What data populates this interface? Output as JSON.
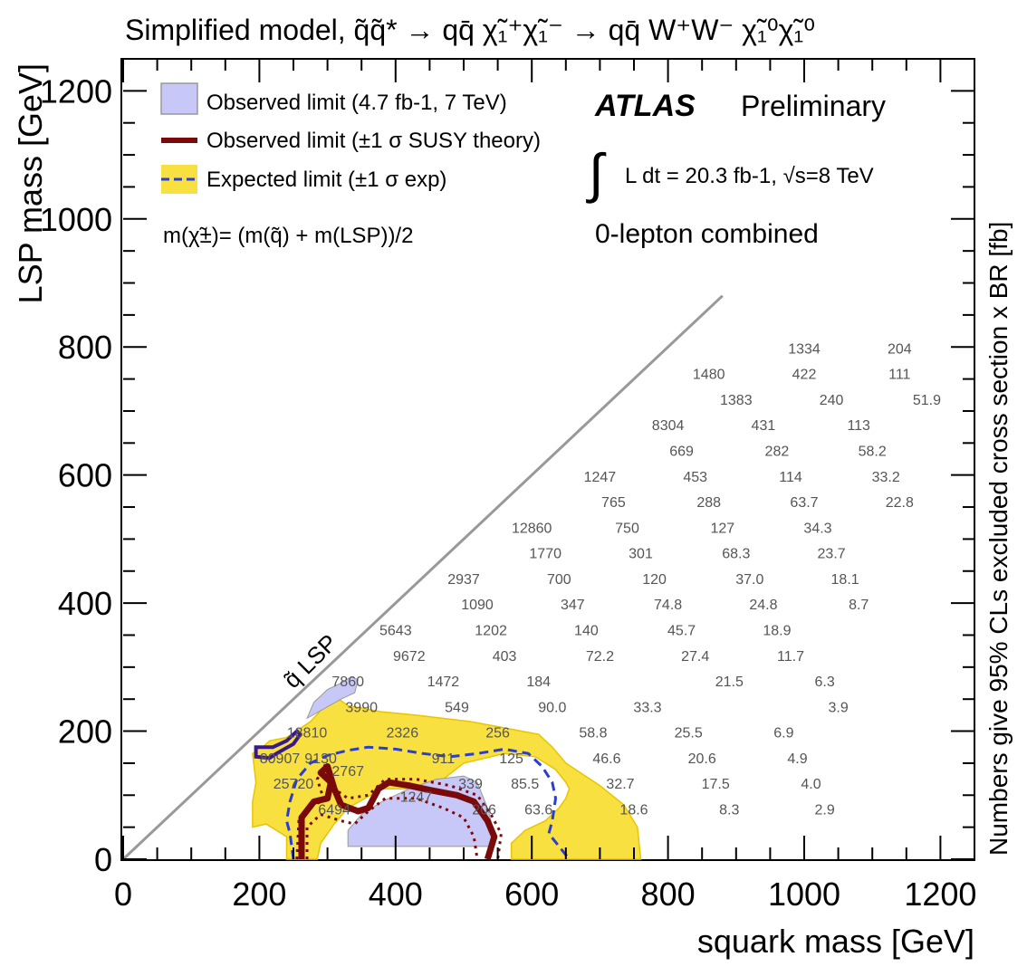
{
  "chart_data": {
    "type": "scatter",
    "title": "Simplified model, q̃q̃* → qq̄ χ̃₁⁺χ̃₁⁻ → qq̄ W⁺W⁻ χ̃₁⁰χ̃₁⁰",
    "xlabel": "squark mass [GeV]",
    "ylabel": "LSP mass [GeV]",
    "zlabel": "Numbers give 95% CLs excluded cross section x BR [fb]",
    "xlim": [
      0,
      1250
    ],
    "ylim": [
      0,
      1250
    ],
    "x_ticks": [
      "0",
      "200",
      "400",
      "600",
      "800",
      "1000",
      "1200"
    ],
    "y_ticks": [
      "0",
      "200",
      "400",
      "600",
      "800",
      "1000",
      "1200"
    ],
    "experiment": "ATLAS",
    "status": "Preliminary",
    "luminosity_text": "L dt = 20.3 fb-1,  √s=8 TeV",
    "analysis": "0-lepton combined",
    "mass_relation": "m(χ̃±)= (m(q̃) + m(LSP))/2",
    "diagonal_label": "q̃ LSP",
    "legend": [
      {
        "label": "Observed limit (4.7 fb-1, 7 TeV)",
        "style": "fill",
        "color": "#c8c8f8"
      },
      {
        "label": "Observed limit (±1 σ SUSY theory)",
        "style": "line",
        "color": "#7a0a0a"
      },
      {
        "label": "Expected limit (±1 σ exp)",
        "style": "band-dashed",
        "color": "#f5e23c"
      }
    ],
    "colors": {
      "observed_7tev": "#c8c8f8",
      "observed_line": "#7a0a0a",
      "expected_band": "#f8e040",
      "expected_line": "#2a3fd0",
      "diagonal": "#999999"
    },
    "cross_section_points": [
      {
        "x": 1000,
        "y": 790,
        "v": "1334"
      },
      {
        "x": 1140,
        "y": 790,
        "v": "204"
      },
      {
        "x": 860,
        "y": 750,
        "v": "1480"
      },
      {
        "x": 1000,
        "y": 750,
        "v": "422"
      },
      {
        "x": 1140,
        "y": 750,
        "v": "111"
      },
      {
        "x": 900,
        "y": 710,
        "v": "1383"
      },
      {
        "x": 1040,
        "y": 710,
        "v": "240"
      },
      {
        "x": 1180,
        "y": 710,
        "v": "51.9"
      },
      {
        "x": 800,
        "y": 670,
        "v": "8304"
      },
      {
        "x": 940,
        "y": 670,
        "v": "431"
      },
      {
        "x": 1080,
        "y": 670,
        "v": "113"
      },
      {
        "x": 820,
        "y": 630,
        "v": "669"
      },
      {
        "x": 960,
        "y": 630,
        "v": "282"
      },
      {
        "x": 1100,
        "y": 630,
        "v": "58.2"
      },
      {
        "x": 700,
        "y": 590,
        "v": "1247"
      },
      {
        "x": 840,
        "y": 590,
        "v": "453"
      },
      {
        "x": 980,
        "y": 590,
        "v": "114"
      },
      {
        "x": 1120,
        "y": 590,
        "v": "33.2"
      },
      {
        "x": 720,
        "y": 550,
        "v": "765"
      },
      {
        "x": 860,
        "y": 550,
        "v": "288"
      },
      {
        "x": 1000,
        "y": 550,
        "v": "63.7"
      },
      {
        "x": 1140,
        "y": 550,
        "v": "22.8"
      },
      {
        "x": 600,
        "y": 510,
        "v": "12860"
      },
      {
        "x": 740,
        "y": 510,
        "v": "750"
      },
      {
        "x": 880,
        "y": 510,
        "v": "127"
      },
      {
        "x": 1020,
        "y": 510,
        "v": "34.3"
      },
      {
        "x": 620,
        "y": 470,
        "v": "1770"
      },
      {
        "x": 760,
        "y": 470,
        "v": "301"
      },
      {
        "x": 900,
        "y": 470,
        "v": "68.3"
      },
      {
        "x": 1040,
        "y": 470,
        "v": "23.7"
      },
      {
        "x": 500,
        "y": 430,
        "v": "2937"
      },
      {
        "x": 640,
        "y": 430,
        "v": "700"
      },
      {
        "x": 780,
        "y": 430,
        "v": "120"
      },
      {
        "x": 920,
        "y": 430,
        "v": "37.0"
      },
      {
        "x": 1060,
        "y": 430,
        "v": "18.1"
      },
      {
        "x": 520,
        "y": 390,
        "v": "1090"
      },
      {
        "x": 660,
        "y": 390,
        "v": "347"
      },
      {
        "x": 800,
        "y": 390,
        "v": "74.8"
      },
      {
        "x": 940,
        "y": 390,
        "v": "24.8"
      },
      {
        "x": 1080,
        "y": 390,
        "v": "8.7"
      },
      {
        "x": 400,
        "y": 350,
        "v": "5643"
      },
      {
        "x": 540,
        "y": 350,
        "v": "1202"
      },
      {
        "x": 680,
        "y": 350,
        "v": "140"
      },
      {
        "x": 820,
        "y": 350,
        "v": "45.7"
      },
      {
        "x": 960,
        "y": 350,
        "v": "18.9"
      },
      {
        "x": 420,
        "y": 310,
        "v": "9672"
      },
      {
        "x": 560,
        "y": 310,
        "v": "403"
      },
      {
        "x": 700,
        "y": 310,
        "v": "72.2"
      },
      {
        "x": 840,
        "y": 310,
        "v": "27.4"
      },
      {
        "x": 980,
        "y": 310,
        "v": "11.7"
      },
      {
        "x": 330,
        "y": 270,
        "v": "7860"
      },
      {
        "x": 470,
        "y": 270,
        "v": "1472"
      },
      {
        "x": 610,
        "y": 270,
        "v": "184"
      },
      {
        "x": 890,
        "y": 270,
        "v": "21.5"
      },
      {
        "x": 1030,
        "y": 270,
        "v": "6.3"
      },
      {
        "x": 350,
        "y": 230,
        "v": "3990"
      },
      {
        "x": 490,
        "y": 230,
        "v": "549"
      },
      {
        "x": 630,
        "y": 230,
        "v": "90.0"
      },
      {
        "x": 770,
        "y": 230,
        "v": "33.3"
      },
      {
        "x": 1050,
        "y": 230,
        "v": "3.9"
      },
      {
        "x": 270,
        "y": 190,
        "v": "18810"
      },
      {
        "x": 410,
        "y": 190,
        "v": "2326"
      },
      {
        "x": 550,
        "y": 190,
        "v": "256"
      },
      {
        "x": 690,
        "y": 190,
        "v": "58.8"
      },
      {
        "x": 830,
        "y": 190,
        "v": "25.5"
      },
      {
        "x": 970,
        "y": 190,
        "v": "6.9"
      },
      {
        "x": 290,
        "y": 150,
        "v": "9130"
      },
      {
        "x": 470,
        "y": 150,
        "v": "911"
      },
      {
        "x": 570,
        "y": 150,
        "v": "125"
      },
      {
        "x": 710,
        "y": 150,
        "v": "46.6"
      },
      {
        "x": 850,
        "y": 150,
        "v": "20.6"
      },
      {
        "x": 990,
        "y": 150,
        "v": "4.9"
      },
      {
        "x": 230,
        "y": 150,
        "v": "80907"
      },
      {
        "x": 330,
        "y": 130,
        "v": "2767"
      },
      {
        "x": 250,
        "y": 110,
        "v": "25720"
      },
      {
        "x": 510,
        "y": 110,
        "v": "339"
      },
      {
        "x": 590,
        "y": 110,
        "v": "85.5"
      },
      {
        "x": 730,
        "y": 110,
        "v": "32.7"
      },
      {
        "x": 870,
        "y": 110,
        "v": "17.5"
      },
      {
        "x": 1010,
        "y": 110,
        "v": "4.0"
      },
      {
        "x": 430,
        "y": 90,
        "v": "1247"
      },
      {
        "x": 310,
        "y": 70,
        "v": "6494"
      },
      {
        "x": 530,
        "y": 70,
        "v": "206"
      },
      {
        "x": 610,
        "y": 70,
        "v": "63.6"
      },
      {
        "x": 750,
        "y": 70,
        "v": "18.6"
      },
      {
        "x": 890,
        "y": 70,
        "v": "8.3"
      },
      {
        "x": 1030,
        "y": 70,
        "v": "2.9"
      }
    ],
    "contours": {
      "expected_band_outer": [
        [
          190,
          165
        ],
        [
          205,
          175
        ],
        [
          215,
          185
        ],
        [
          240,
          190
        ],
        [
          275,
          215
        ],
        [
          310,
          255
        ],
        [
          330,
          240
        ],
        [
          380,
          230
        ],
        [
          430,
          225
        ],
        [
          510,
          215
        ],
        [
          560,
          205
        ],
        [
          610,
          195
        ],
        [
          630,
          175
        ],
        [
          650,
          150
        ],
        [
          700,
          115
        ],
        [
          735,
          85
        ],
        [
          755,
          50
        ],
        [
          760,
          0
        ],
        [
          570,
          0
        ],
        [
          570,
          25
        ],
        [
          590,
          45
        ],
        [
          620,
          60
        ],
        [
          640,
          80
        ],
        [
          650,
          95
        ],
        [
          655,
          110
        ],
        [
          650,
          120
        ],
        [
          635,
          140
        ],
        [
          605,
          160
        ],
        [
          560,
          165
        ],
        [
          500,
          150
        ],
        [
          470,
          125
        ],
        [
          430,
          110
        ],
        [
          380,
          110
        ],
        [
          330,
          80
        ],
        [
          310,
          55
        ],
        [
          290,
          25
        ],
        [
          285,
          0
        ],
        [
          240,
          0
        ],
        [
          240,
          35
        ],
        [
          210,
          55
        ],
        [
          190,
          50
        ],
        [
          190,
          90
        ],
        [
          195,
          120
        ]
      ],
      "expected_line": [
        [
          250,
          0
        ],
        [
          245,
          40
        ],
        [
          240,
          60
        ],
        [
          245,
          90
        ],
        [
          255,
          125
        ],
        [
          275,
          150
        ],
        [
          300,
          162
        ],
        [
          330,
          170
        ],
        [
          360,
          175
        ],
        [
          400,
          172
        ],
        [
          440,
          165
        ],
        [
          480,
          160
        ],
        [
          520,
          165
        ],
        [
          560,
          172
        ],
        [
          595,
          165
        ],
        [
          615,
          145
        ],
        [
          630,
          120
        ],
        [
          635,
          95
        ],
        [
          630,
          60
        ],
        [
          625,
          40
        ],
        [
          655,
          0
        ]
      ],
      "observed_line": [
        [
          262,
          0
        ],
        [
          262,
          65
        ],
        [
          280,
          90
        ],
        [
          300,
          95
        ],
        [
          305,
          120
        ],
        [
          290,
          135
        ],
        [
          300,
          145
        ],
        [
          310,
          110
        ],
        [
          320,
          85
        ],
        [
          345,
          75
        ],
        [
          360,
          80
        ],
        [
          375,
          110
        ],
        [
          390,
          120
        ],
        [
          420,
          115
        ],
        [
          450,
          108
        ],
        [
          490,
          100
        ],
        [
          515,
          90
        ],
        [
          535,
          60
        ],
        [
          545,
          35
        ],
        [
          535,
          0
        ]
      ],
      "observed_line_plus": [
        [
          255,
          0
        ],
        [
          258,
          60
        ],
        [
          270,
          80
        ],
        [
          295,
          92
        ],
        [
          285,
          125
        ],
        [
          298,
          150
        ],
        [
          310,
          110
        ],
        [
          330,
          95
        ],
        [
          360,
          100
        ],
        [
          385,
          125
        ],
        [
          430,
          125
        ],
        [
          480,
          115
        ],
        [
          520,
          100
        ],
        [
          540,
          70
        ],
        [
          555,
          40
        ],
        [
          550,
          0
        ]
      ],
      "observed_line_minus": [
        [
          270,
          0
        ],
        [
          270,
          50
        ],
        [
          290,
          70
        ],
        [
          320,
          60
        ],
        [
          340,
          55
        ],
        [
          360,
          75
        ],
        [
          385,
          95
        ],
        [
          430,
          95
        ],
        [
          470,
          80
        ],
        [
          500,
          65
        ],
        [
          515,
          35
        ],
        [
          520,
          0
        ]
      ],
      "observed_7tev": [
        [
          330,
          20
        ],
        [
          330,
          45
        ],
        [
          350,
          70
        ],
        [
          380,
          90
        ],
        [
          420,
          110
        ],
        [
          460,
          125
        ],
        [
          500,
          130
        ],
        [
          520,
          120
        ],
        [
          535,
          80
        ],
        [
          545,
          40
        ],
        [
          540,
          20
        ]
      ],
      "observed_7tev_top": [
        [
          270,
          220
        ],
        [
          280,
          245
        ],
        [
          300,
          265
        ],
        [
          320,
          275
        ],
        [
          335,
          285
        ],
        [
          345,
          280
        ],
        [
          340,
          260
        ],
        [
          320,
          250
        ]
      ],
      "small_box": [
        [
          195,
          160
        ],
        [
          195,
          175
        ],
        [
          220,
          175
        ],
        [
          240,
          185
        ],
        [
          255,
          200
        ],
        [
          260,
          195
        ],
        [
          250,
          180
        ],
        [
          225,
          165
        ],
        [
          215,
          158
        ]
      ]
    }
  }
}
